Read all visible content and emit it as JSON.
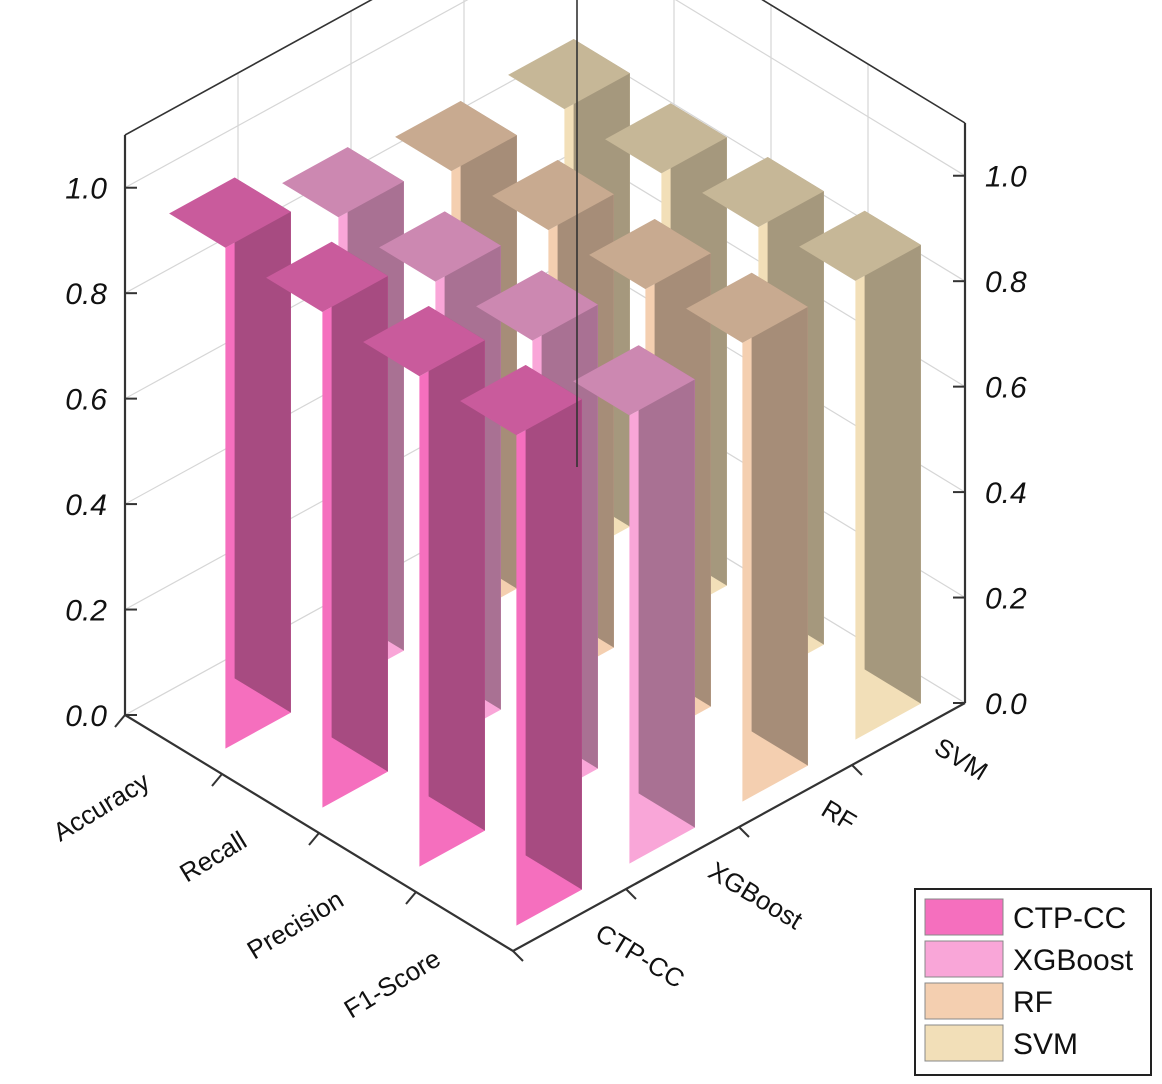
{
  "chart_data": {
    "type": "bar",
    "subtype": "3d-bar",
    "categories": [
      "Accuracy",
      "Recall",
      "Precision",
      "F1-Score"
    ],
    "series": [
      {
        "name": "CTP-CC",
        "values": [
          0.95,
          0.94,
          0.93,
          0.93
        ],
        "color": "#f56fbe"
      },
      {
        "name": "XGBoost",
        "values": [
          0.89,
          0.88,
          0.88,
          0.85
        ],
        "color": "#f9a6d8"
      },
      {
        "name": "RF",
        "values": [
          0.86,
          0.86,
          0.86,
          0.87
        ],
        "color": "#f4cfb0"
      },
      {
        "name": "SVM",
        "values": [
          0.86,
          0.85,
          0.86,
          0.87
        ],
        "color": "#f2dfb8"
      }
    ],
    "zlim": [
      0,
      1.1
    ],
    "z_ticks": [
      "0.0",
      "0.2",
      "0.4",
      "0.6",
      "0.8",
      "1.0"
    ],
    "grid": true,
    "legend_position": "bottom-right"
  }
}
